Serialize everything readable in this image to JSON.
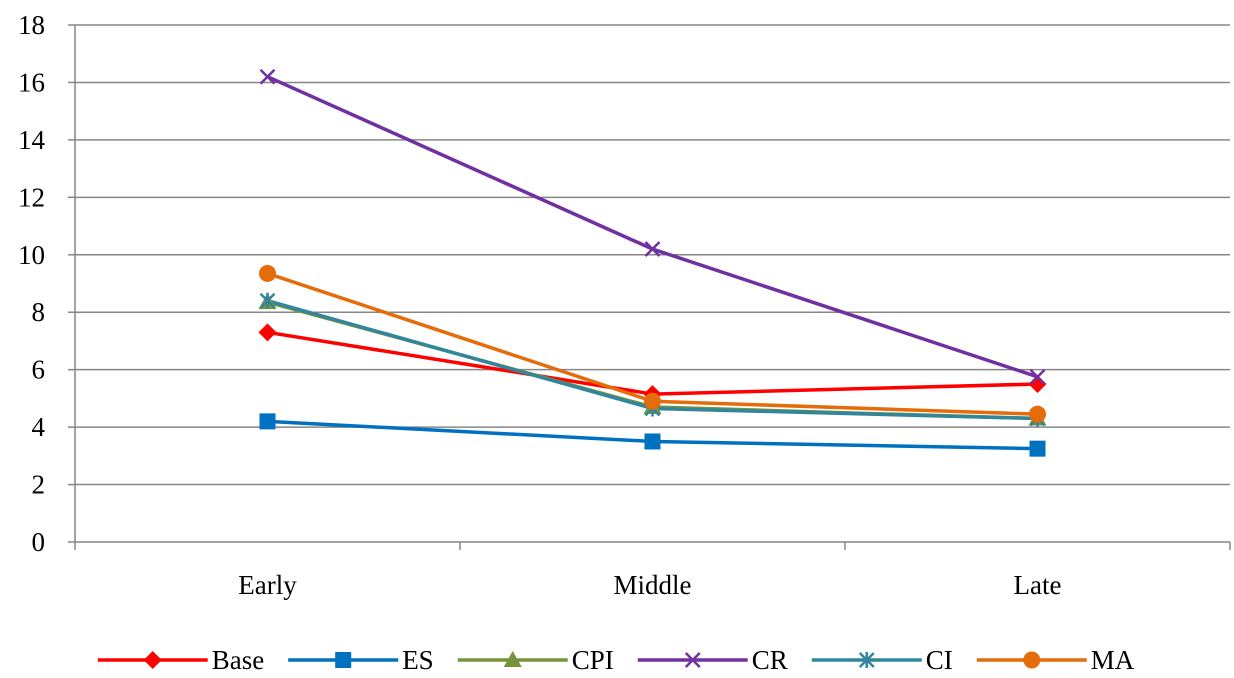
{
  "chart_data": {
    "type": "line",
    "categories": [
      "Early",
      "Middle",
      "Late"
    ],
    "ylim": [
      0,
      18
    ],
    "yticks": [
      0,
      2,
      4,
      6,
      8,
      10,
      12,
      14,
      16,
      18
    ],
    "grid": true,
    "legend_position": "bottom",
    "series": [
      {
        "name": "Base",
        "values": [
          7.3,
          5.15,
          5.5
        ],
        "color": "#ff0000",
        "marker": "diamond"
      },
      {
        "name": "ES",
        "values": [
          4.2,
          3.5,
          3.25
        ],
        "color": "#0070c0",
        "marker": "square"
      },
      {
        "name": "CPI",
        "values": [
          8.35,
          4.7,
          4.3
        ],
        "color": "#77933c",
        "marker": "triangle"
      },
      {
        "name": "CR",
        "values": [
          16.2,
          10.2,
          5.75
        ],
        "color": "#7030a0",
        "marker": "x"
      },
      {
        "name": "CI",
        "values": [
          8.4,
          4.65,
          4.3
        ],
        "color": "#31859c",
        "marker": "star"
      },
      {
        "name": "MA",
        "values": [
          9.35,
          4.9,
          4.45
        ],
        "color": "#e46c0a",
        "marker": "circle"
      }
    ]
  }
}
